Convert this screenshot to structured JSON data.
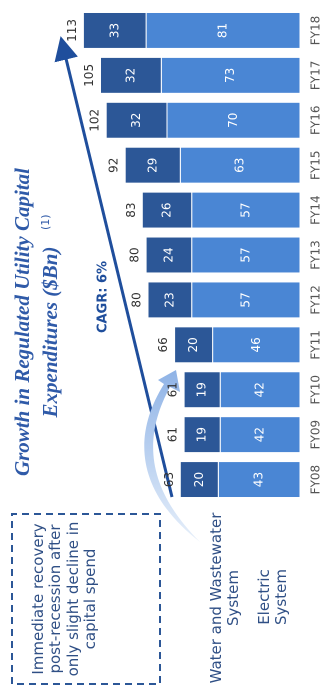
{
  "chart_data": {
    "type": "stacked_bar",
    "title_lines": [
      "Growth in Regulated Utility Capital",
      "Expenditures ($Bn)"
    ],
    "title_note": "(1)",
    "annotation": "CAGR: 6%",
    "callout": "Immediate recovery post-recession after only slight decline in capital spend",
    "categories": [
      "FY08",
      "FY09",
      "FY10",
      "FY11",
      "FY12",
      "FY13",
      "FY14",
      "FY15",
      "FY16",
      "FY17",
      "FY18"
    ],
    "series": [
      {
        "name": "Electric System",
        "color": "#4a86d4",
        "values": [
          43,
          42,
          42,
          46,
          57,
          57,
          57,
          63,
          70,
          73,
          81
        ]
      },
      {
        "name": "Water and Wastewater System",
        "color": "#2c5797",
        "values": [
          20,
          19,
          19,
          20,
          23,
          24,
          26,
          29,
          32,
          32,
          33
        ]
      }
    ],
    "totals": [
      63,
      61,
      61,
      66,
      80,
      80,
      83,
      92,
      102,
      105,
      113
    ]
  }
}
